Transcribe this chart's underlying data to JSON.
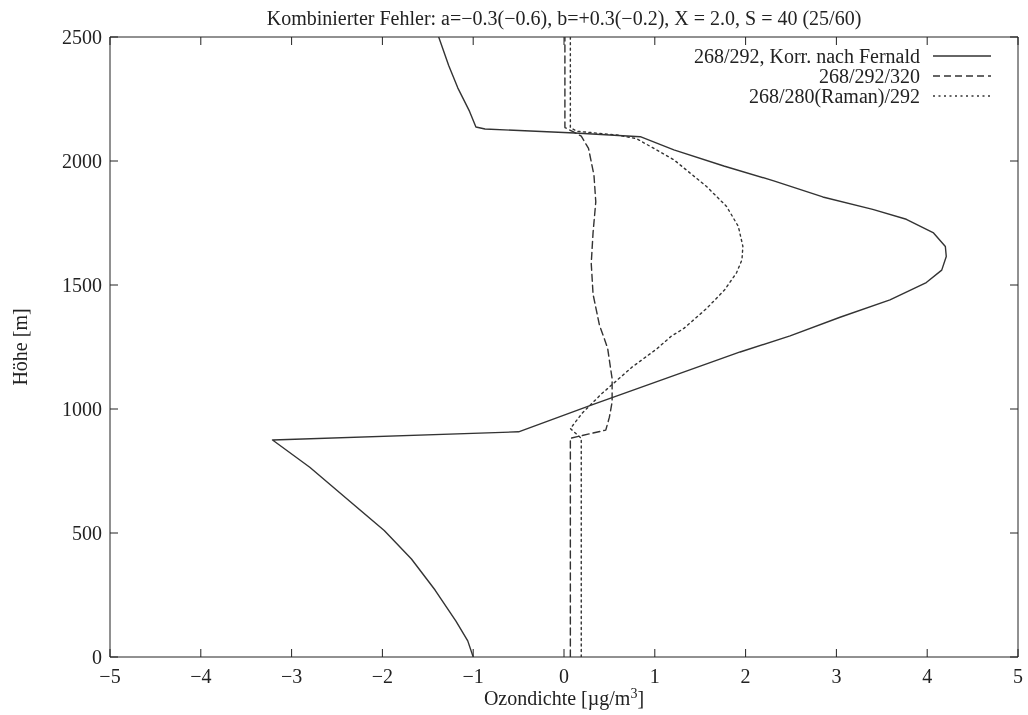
{
  "chart_data": {
    "type": "line",
    "title": "Kombinierter Fehler: a=−0.3(−0.6), b=+0.3(−0.2), X = 2.0, S = 40 (25/60)",
    "xlabel": "Ozondichte [µg/m$^{3}$]",
    "ylabel": "Höhe [m]",
    "xlim": [
      -5,
      5
    ],
    "ylim": [
      0,
      2500
    ],
    "xticks": [
      {
        "value": -5,
        "label": "−5"
      },
      {
        "value": -4,
        "label": "−4"
      },
      {
        "value": -3,
        "label": "−3"
      },
      {
        "value": -2,
        "label": "−2"
      },
      {
        "value": -1,
        "label": "−1"
      },
      0,
      1,
      2,
      3,
      4,
      5
    ],
    "yticks": [
      0,
      500,
      1000,
      1500,
      2000,
      2500
    ],
    "legend": "top right",
    "marker": "none",
    "series": [
      {
        "name": "268/292, Korr. nach Fernald",
        "color": "#333333",
        "line_style": "solid",
        "x": [
          -1.0,
          -1.06,
          -1.19,
          -1.42,
          -1.68,
          -1.98,
          -2.35,
          -2.8,
          -3.21,
          -0.5,
          0.33,
          1.94,
          2.49,
          3.04,
          3.59,
          3.99,
          4.16,
          4.21,
          4.2,
          4.07,
          3.77,
          3.4,
          2.85,
          2.31,
          1.76,
          1.21,
          0.84,
          0.12,
          -0.87,
          -0.97,
          -1.04,
          -1.17,
          -1.27,
          -1.38
        ],
        "values": [
          0,
          65,
          145,
          270,
          395,
          510,
          625,
          765,
          875,
          908,
          1020,
          1230,
          1295,
          1370,
          1440,
          1510,
          1560,
          1615,
          1655,
          1710,
          1765,
          1805,
          1855,
          1920,
          1980,
          2045,
          2098,
          2113,
          2129,
          2137,
          2200,
          2295,
          2385,
          2500
        ]
      },
      {
        "name": "268/292/320",
        "color": "#333333",
        "line_style": "dashed",
        "x": [
          0.07,
          0.07,
          0.46,
          0.5,
          0.53,
          0.53,
          0.48,
          0.39,
          0.32,
          0.3,
          0.32,
          0.35,
          0.33,
          0.27,
          0.19,
          0.1,
          0.01,
          0.01
        ],
        "values": [
          0,
          882,
          915,
          967,
          1029,
          1122,
          1246,
          1339,
          1463,
          1587,
          1711,
          1835,
          1943,
          2051,
          2100,
          2118,
          2135,
          2500
        ]
      },
      {
        "name": "268/280(Raman)/292",
        "color": "#333333",
        "line_style": "dotted",
        "x": [
          0.19,
          0.19,
          0.07,
          0.2,
          0.41,
          0.75,
          1.02,
          1.18,
          1.32,
          1.57,
          1.77,
          1.9,
          1.96,
          1.97,
          1.92,
          1.79,
          1.57,
          1.21,
          0.8,
          0.58,
          0.14,
          0.07,
          0.07
        ],
        "values": [
          0,
          882,
          921,
          983,
          1060,
          1169,
          1242,
          1293,
          1325,
          1405,
          1481,
          1549,
          1602,
          1656,
          1736,
          1817,
          1897,
          2005,
          2090,
          2105,
          2120,
          2135,
          2500
        ]
      }
    ]
  }
}
